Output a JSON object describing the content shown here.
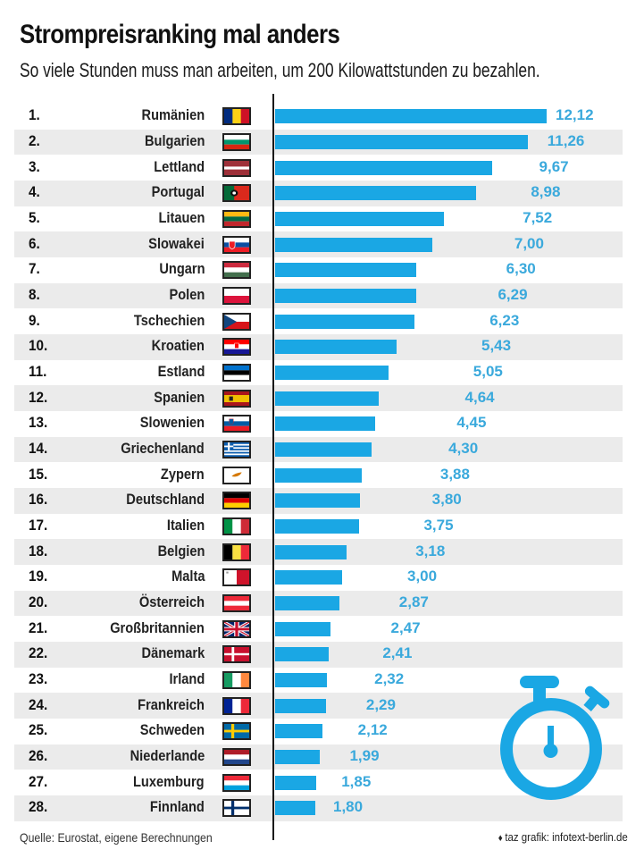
{
  "header": {
    "title": "Strompreisranking mal anders",
    "subtitle": "So viele Stunden muss man arbeiten, um 200 Kilowattstunden zu bezahlen."
  },
  "footer": {
    "source": "Quelle: Eurostat, eigene Berechnungen",
    "credit_icon": "taz-logo-icon",
    "credit": "taz grafik: infotext-berlin.de"
  },
  "decoration": {
    "icon": "stopwatch-icon"
  },
  "colors": {
    "bar": "#1aa7e4",
    "value_label": "#3aa9dc",
    "stripe": "#ebebeb",
    "axis": "#1a1a1a"
  },
  "chart_data": {
    "type": "bar",
    "orientation": "horizontal",
    "title": "Strompreisranking mal anders",
    "subtitle": "So viele Stunden muss man arbeiten, um 200 Kilowattstunden zu bezahlen.",
    "xlabel": "",
    "ylabel": "",
    "unit": "Stunden",
    "decimal_separator": ",",
    "xlim": [
      0,
      12.12
    ],
    "grid": false,
    "legend": "none",
    "rows": [
      {
        "rank": "1.",
        "country": "Rumänien",
        "flag": "romania-flag",
        "value": 12.12,
        "label": "12,12"
      },
      {
        "rank": "2.",
        "country": "Bulgarien",
        "flag": "bulgaria-flag",
        "value": 11.26,
        "label": "11,26"
      },
      {
        "rank": "3.",
        "country": "Lettland",
        "flag": "latvia-flag",
        "value": 9.67,
        "label": "9,67"
      },
      {
        "rank": "4.",
        "country": "Portugal",
        "flag": "portugal-flag",
        "value": 8.98,
        "label": "8,98"
      },
      {
        "rank": "5.",
        "country": "Litauen",
        "flag": "lithuania-flag",
        "value": 7.52,
        "label": "7,52"
      },
      {
        "rank": "6.",
        "country": "Slowakei",
        "flag": "slovakia-flag",
        "value": 7.0,
        "label": "7,00"
      },
      {
        "rank": "7.",
        "country": "Ungarn",
        "flag": "hungary-flag",
        "value": 6.3,
        "label": "6,30"
      },
      {
        "rank": "8.",
        "country": "Polen",
        "flag": "poland-flag",
        "value": 6.29,
        "label": "6,29"
      },
      {
        "rank": "9.",
        "country": "Tschechien",
        "flag": "czechia-flag",
        "value": 6.23,
        "label": "6,23"
      },
      {
        "rank": "10.",
        "country": "Kroatien",
        "flag": "croatia-flag",
        "value": 5.43,
        "label": "5,43"
      },
      {
        "rank": "11.",
        "country": "Estland",
        "flag": "estonia-flag",
        "value": 5.05,
        "label": "5,05"
      },
      {
        "rank": "12.",
        "country": "Spanien",
        "flag": "spain-flag",
        "value": 4.64,
        "label": "4,64"
      },
      {
        "rank": "13.",
        "country": "Slowenien",
        "flag": "slovenia-flag",
        "value": 4.45,
        "label": "4,45"
      },
      {
        "rank": "14.",
        "country": "Griechenland",
        "flag": "greece-flag",
        "value": 4.3,
        "label": "4,30"
      },
      {
        "rank": "15.",
        "country": "Zypern",
        "flag": "cyprus-flag",
        "value": 3.88,
        "label": "3,88"
      },
      {
        "rank": "16.",
        "country": "Deutschland",
        "flag": "germany-flag",
        "value": 3.8,
        "label": "3,80"
      },
      {
        "rank": "17.",
        "country": "Italien",
        "flag": "italy-flag",
        "value": 3.75,
        "label": "3,75"
      },
      {
        "rank": "18.",
        "country": "Belgien",
        "flag": "belgium-flag",
        "value": 3.18,
        "label": "3,18"
      },
      {
        "rank": "19.",
        "country": "Malta",
        "flag": "malta-flag",
        "value": 3.0,
        "label": "3,00"
      },
      {
        "rank": "20.",
        "country": "Österreich",
        "flag": "austria-flag",
        "value": 2.87,
        "label": "2,87"
      },
      {
        "rank": "21.",
        "country": "Großbritannien",
        "flag": "uk-flag",
        "value": 2.47,
        "label": "2,47"
      },
      {
        "rank": "22.",
        "country": "Dänemark",
        "flag": "denmark-flag",
        "value": 2.41,
        "label": "2,41"
      },
      {
        "rank": "23.",
        "country": "Irland",
        "flag": "ireland-flag",
        "value": 2.32,
        "label": "2,32"
      },
      {
        "rank": "24.",
        "country": "Frankreich",
        "flag": "france-flag",
        "value": 2.29,
        "label": "2,29"
      },
      {
        "rank": "25.",
        "country": "Schweden",
        "flag": "sweden-flag",
        "value": 2.12,
        "label": "2,12"
      },
      {
        "rank": "26.",
        "country": "Niederlande",
        "flag": "netherlands-flag",
        "value": 1.99,
        "label": "1,99"
      },
      {
        "rank": "27.",
        "country": "Luxemburg",
        "flag": "luxembourg-flag",
        "value": 1.85,
        "label": "1,85"
      },
      {
        "rank": "28.",
        "country": "Finnland",
        "flag": "finland-flag",
        "value": 1.8,
        "label": "1,80"
      }
    ]
  }
}
